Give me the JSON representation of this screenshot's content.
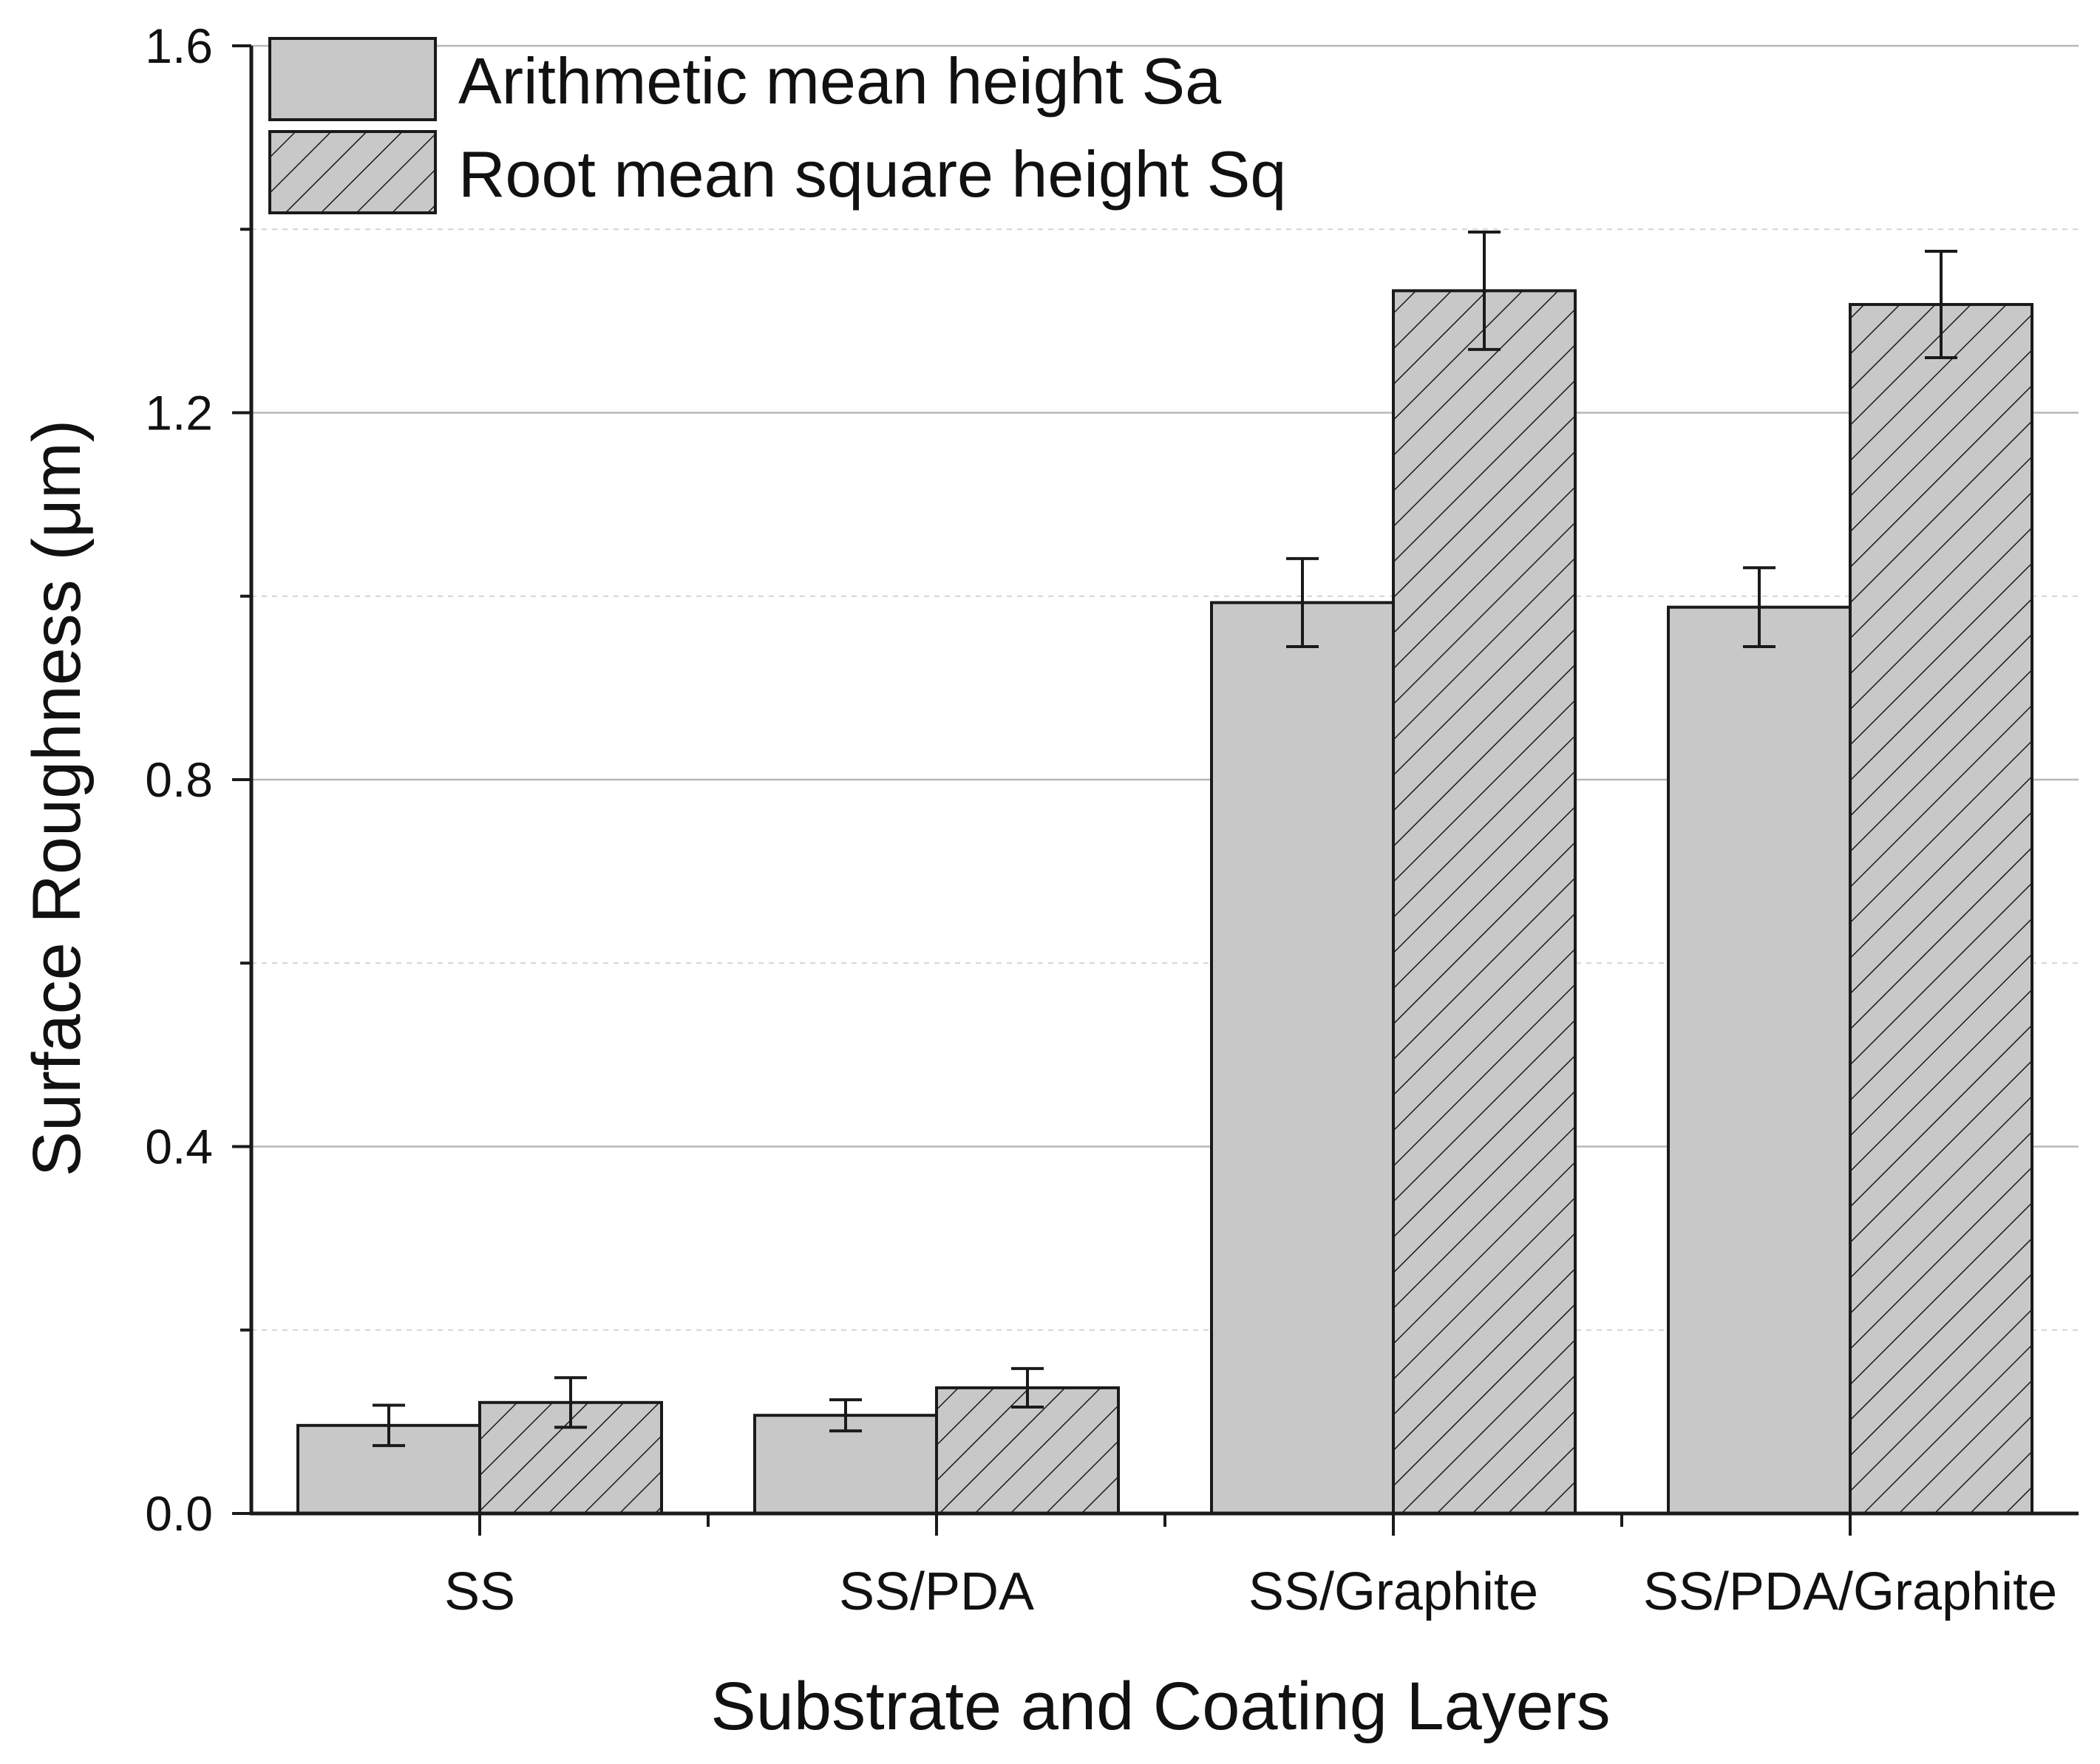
{
  "chart_data": {
    "type": "bar",
    "title": "",
    "xlabel": "Substrate and Coating Layers",
    "ylabel": "Surface Roughness (μm)",
    "ylim": [
      0,
      1.6
    ],
    "yticks": [
      "0.0",
      "0.4",
      "0.8",
      "1.2",
      "1.6"
    ],
    "grid": true,
    "legend_position": "top-left",
    "categories": [
      "SS",
      "SS/PDA",
      "SS/Graphite",
      "SS/PDA/Graphite"
    ],
    "series": [
      {
        "name": "Arithmetic mean height Sa",
        "pattern": "solid",
        "values": [
          0.096,
          0.107,
          0.993,
          0.988
        ],
        "errors": [
          0.022,
          0.017,
          0.048,
          0.043
        ]
      },
      {
        "name": "Root mean square height Sq",
        "pattern": "hatched",
        "values": [
          0.121,
          0.137,
          1.333,
          1.318
        ],
        "errors": [
          0.027,
          0.021,
          0.064,
          0.058
        ]
      }
    ],
    "colors": {
      "bar_fill": "#c8c8c8",
      "bar_stroke": "#1a1a1a",
      "axis": "#1a1a1a",
      "grid_major": "#b8b8b8",
      "grid_minor": "#d4d4d4"
    }
  }
}
